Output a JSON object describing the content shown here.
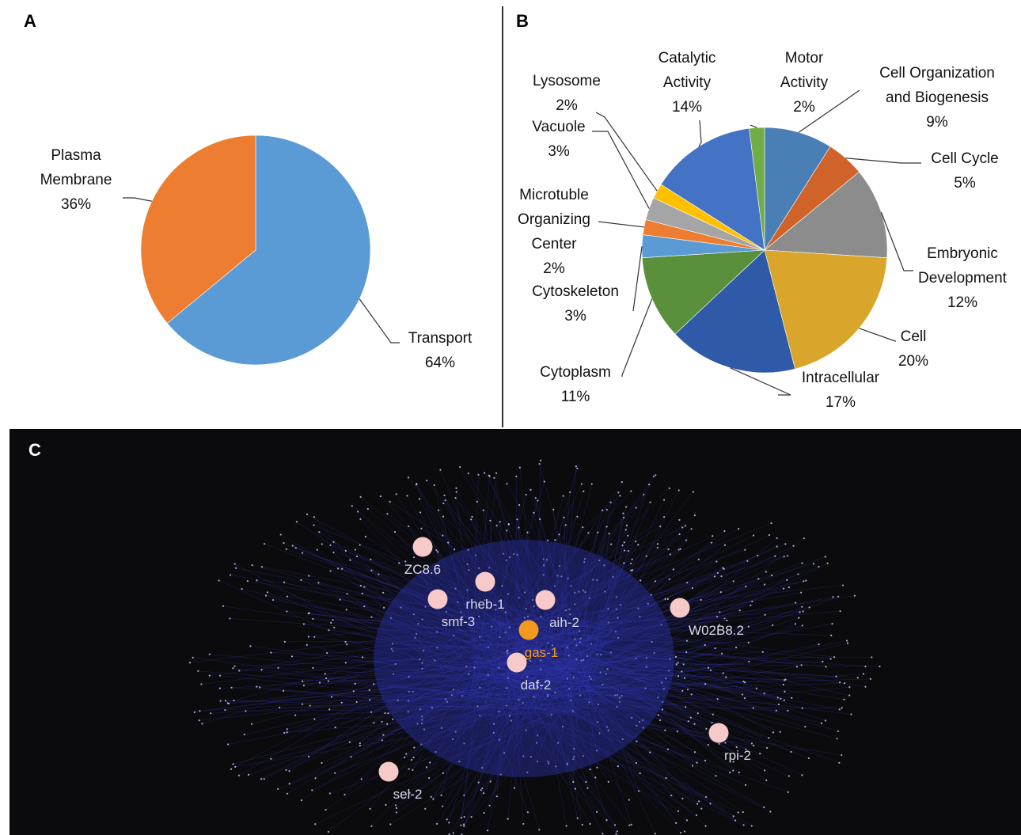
{
  "panels": {
    "a": "A",
    "b": "B",
    "c": "C"
  },
  "chart_data": [
    {
      "type": "pie",
      "panel": "A",
      "slices": [
        {
          "label": "Transport",
          "value": 64,
          "pct_label": "64%",
          "color": "#5b9bd5"
        },
        {
          "label": "Plasma Membrane",
          "value": 36,
          "pct_label": "36%",
          "color": "#ed7d31"
        }
      ]
    },
    {
      "type": "pie",
      "panel": "B",
      "slices": [
        {
          "label": "Cell Organization and Biogenesis",
          "value": 9,
          "pct_label": "9%",
          "color": "#4a7fb5"
        },
        {
          "label": "Cell Cycle",
          "value": 5,
          "pct_label": "5%",
          "color": "#d0632a"
        },
        {
          "label": "Embryonic Development",
          "value": 12,
          "pct_label": "12%",
          "color": "#8c8c8c"
        },
        {
          "label": "Cell",
          "value": 20,
          "pct_label": "20%",
          "color": "#d9a52b"
        },
        {
          "label": "Intracellular",
          "value": 17,
          "pct_label": "17%",
          "color": "#2f5aa8"
        },
        {
          "label": "Cytoplasm",
          "value": 11,
          "pct_label": "11%",
          "color": "#5a8f3c"
        },
        {
          "label": "Cytoskeleton",
          "value": 3,
          "pct_label": "3%",
          "color": "#5b9bd5"
        },
        {
          "label": "Microtuble Organizing Center",
          "value": 2,
          "pct_label": "2%",
          "color": "#ed7d31"
        },
        {
          "label": "Vacuole",
          "value": 3,
          "pct_label": "3%",
          "color": "#a5a5a5"
        },
        {
          "label": "Lysosome",
          "value": 2,
          "pct_label": "2%",
          "color": "#ffc000"
        },
        {
          "label": "Catalytic Activity",
          "value": 14,
          "pct_label": "14%",
          "color": "#4472c4"
        },
        {
          "label": "Motor Activity",
          "value": 2,
          "pct_label": "2%",
          "color": "#70ad47"
        }
      ]
    },
    {
      "type": "network",
      "panel": "C",
      "highlighted_nodes": [
        {
          "label": "ZC8.6",
          "color": "#f7c9c9"
        },
        {
          "label": "rheb-1",
          "color": "#f7c9c9"
        },
        {
          "label": "smf-3",
          "color": "#f7c9c9"
        },
        {
          "label": "aih-2",
          "color": "#f7c9c9"
        },
        {
          "label": "gas-1",
          "color": "#f39a1e"
        },
        {
          "label": "daf-2",
          "color": "#f7c9c9"
        },
        {
          "label": "W02B8.2",
          "color": "#f7c9c9"
        },
        {
          "label": "rpi-2",
          "color": "#f7c9c9"
        },
        {
          "label": "sel-2",
          "color": "#f7c9c9"
        }
      ],
      "background": "#0b0b0d",
      "edge_color": "#3a3fd0"
    }
  ]
}
